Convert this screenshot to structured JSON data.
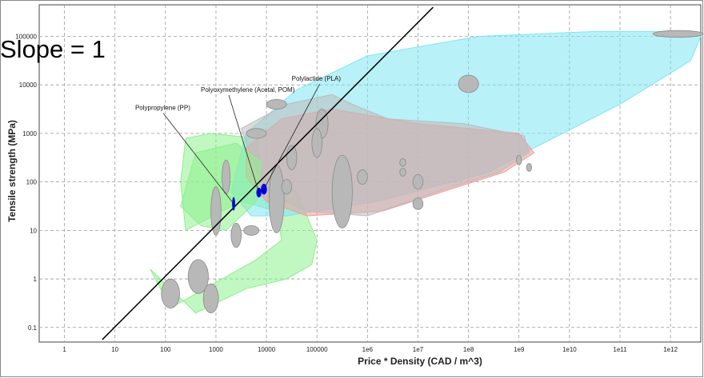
{
  "chart_data": {
    "type": "scatter",
    "xscale": "log",
    "yscale": "log",
    "xlim_exp": [
      -0.5,
      12.6
    ],
    "ylim_exp": [
      -1.3,
      5.65
    ],
    "grid": true,
    "xlabel": "Price * Density (CAD / m^3)",
    "ylabel": "Tensile strength (MPa)",
    "x_ticks": [
      {
        "exp": 0,
        "label": "1"
      },
      {
        "exp": 1,
        "label": "10"
      },
      {
        "exp": 2,
        "label": "100"
      },
      {
        "exp": 3,
        "label": "1000"
      },
      {
        "exp": 4,
        "label": "10000"
      },
      {
        "exp": 5,
        "label": "100000"
      },
      {
        "exp": 6,
        "label": "1e6"
      },
      {
        "exp": 7,
        "label": "1e7"
      },
      {
        "exp": 8,
        "label": "1e8"
      },
      {
        "exp": 9,
        "label": "1e9"
      },
      {
        "exp": 10,
        "label": "1e10"
      },
      {
        "exp": 11,
        "label": "1e11"
      },
      {
        "exp": 12,
        "label": "1e12"
      }
    ],
    "y_ticks": [
      {
        "exp": -1,
        "label": "0.1"
      },
      {
        "exp": 0,
        "label": "1"
      },
      {
        "exp": 1,
        "label": "10"
      },
      {
        "exp": 2,
        "label": "100"
      },
      {
        "exp": 3,
        "label": "1000"
      },
      {
        "exp": 4,
        "label": "10000"
      },
      {
        "exp": 5,
        "label": "100000"
      }
    ],
    "guide_line": {
      "label": "Slope = 1",
      "slope": 1,
      "points_exp": [
        [
          0.75,
          -1.25
        ],
        [
          7.3,
          5.6
        ]
      ],
      "color": "#000000"
    },
    "families": [
      {
        "color": "#8ef08e",
        "points_exp": [
          [
            1.7,
            0.2
          ],
          [
            2.1,
            -0.6
          ],
          [
            3.8,
            0.4
          ],
          [
            4.3,
            0.8
          ],
          [
            4.2,
            1.4
          ],
          [
            3.5,
            1.6
          ],
          [
            2.4,
            1.0
          ],
          [
            2.3,
            2.0
          ],
          [
            2.4,
            2.9
          ],
          [
            2.9,
            3.0
          ],
          [
            3.8,
            2.9
          ],
          [
            3.9,
            2.2
          ],
          [
            4.6,
            1.8
          ],
          [
            5.0,
            0.8
          ],
          [
            4.9,
            0.3
          ],
          [
            4.4,
            -0.0
          ],
          [
            3.6,
            -0.2
          ],
          [
            2.6,
            -0.7
          ]
        ]
      },
      {
        "color": "#7fe6f2",
        "points_exp": [
          [
            3.3,
            1.8
          ],
          [
            3.6,
            3.0
          ],
          [
            4.6,
            3.9
          ],
          [
            6.0,
            4.6
          ],
          [
            8.2,
            5.0
          ],
          [
            10.5,
            5.1
          ],
          [
            12.2,
            5.1
          ],
          [
            12.6,
            5.0
          ],
          [
            12.4,
            4.5
          ],
          [
            11.0,
            3.6
          ],
          [
            9.3,
            2.7
          ],
          [
            8.4,
            2.2
          ],
          [
            6.2,
            1.6
          ],
          [
            4.4,
            1.3
          ],
          [
            3.7,
            1.3
          ]
        ]
      },
      {
        "color": "#f29b9b",
        "points_exp": [
          [
            3.6,
            2.7
          ],
          [
            4.3,
            3.3
          ],
          [
            5.3,
            3.5
          ],
          [
            7.0,
            3.2
          ],
          [
            9.0,
            3.0
          ],
          [
            9.3,
            2.6
          ],
          [
            8.7,
            2.2
          ],
          [
            7.5,
            1.8
          ],
          [
            6.3,
            1.4
          ],
          [
            4.8,
            1.3
          ],
          [
            4.0,
            1.6
          ],
          [
            3.6,
            2.1
          ]
        ]
      },
      {
        "color": "#bbbbbb",
        "points_exp": [
          [
            3.5,
            3.1
          ],
          [
            4.4,
            3.6
          ],
          [
            5.3,
            3.8
          ],
          [
            5.7,
            3.6
          ],
          [
            6.4,
            3.3
          ],
          [
            7.9,
            3.2
          ],
          [
            9.1,
            2.95
          ],
          [
            9.2,
            2.6
          ],
          [
            8.6,
            2.2
          ],
          [
            7.4,
            1.8
          ],
          [
            6.0,
            1.3
          ],
          [
            4.8,
            1.4
          ],
          [
            4.0,
            1.8
          ],
          [
            3.7,
            2.5
          ]
        ]
      },
      {
        "color": "#8ef08e",
        "points_exp": [
          [
            2.3,
            1.5
          ],
          [
            2.6,
            2.6
          ],
          [
            3.4,
            2.8
          ],
          [
            3.9,
            2.4
          ],
          [
            3.8,
            1.6
          ],
          [
            3.2,
            1.0
          ],
          [
            2.7,
            1.1
          ]
        ]
      }
    ],
    "blobs_exp": [
      [
        12.15,
        5.05,
        0.5,
        0.07
      ],
      [
        8.0,
        4.02,
        0.2,
        0.18
      ],
      [
        9.0,
        2.45,
        0.05,
        0.1
      ],
      [
        9.2,
        2.3,
        0.05,
        0.08
      ],
      [
        7.0,
        2.0,
        0.1,
        0.15
      ],
      [
        7.0,
        1.55,
        0.1,
        0.12
      ],
      [
        6.7,
        2.2,
        0.06,
        0.08
      ],
      [
        6.7,
        2.4,
        0.06,
        0.08
      ],
      [
        5.5,
        1.8,
        0.2,
        0.75
      ],
      [
        4.2,
        1.65,
        0.15,
        0.7
      ],
      [
        3.2,
        2.1,
        0.08,
        0.35
      ],
      [
        3.0,
        1.4,
        0.1,
        0.5
      ],
      [
        2.65,
        0.05,
        0.2,
        0.35
      ],
      [
        2.9,
        -0.4,
        0.15,
        0.3
      ],
      [
        2.1,
        -0.3,
        0.18,
        0.3
      ],
      [
        4.5,
        2.5,
        0.1,
        0.25
      ],
      [
        5.1,
        3.2,
        0.12,
        0.3
      ],
      [
        3.8,
        3.0,
        0.2,
        0.1
      ],
      [
        4.2,
        3.6,
        0.2,
        0.1
      ],
      [
        3.7,
        1.0,
        0.15,
        0.1
      ],
      [
        4.4,
        1.9,
        0.1,
        0.15
      ],
      [
        5.0,
        2.8,
        0.1,
        0.3
      ],
      [
        3.4,
        0.9,
        0.1,
        0.25
      ],
      [
        5.9,
        2.1,
        0.1,
        0.15
      ]
    ],
    "highlights": [
      {
        "label": "Polypropylene (PP)",
        "point_exp": [
          3.35,
          1.55
        ],
        "rx_exp": 0.03,
        "ry_exp": 0.14,
        "color": "#0000dd",
        "label_anchor_exp": [
          1.4,
          3.45
        ]
      },
      {
        "label": "Polyoxymethylene (Acetal, POM)",
        "point_exp": [
          3.85,
          1.78
        ],
        "rx_exp": 0.05,
        "ry_exp": 0.1,
        "color": "#0000dd",
        "label_anchor_exp": [
          2.7,
          3.82
        ]
      },
      {
        "label": "Polylactide (PLA)",
        "point_exp": [
          3.95,
          1.85
        ],
        "rx_exp": 0.06,
        "ry_exp": 0.11,
        "color": "#0000dd",
        "label_anchor_exp": [
          4.5,
          4.05
        ]
      }
    ]
  }
}
